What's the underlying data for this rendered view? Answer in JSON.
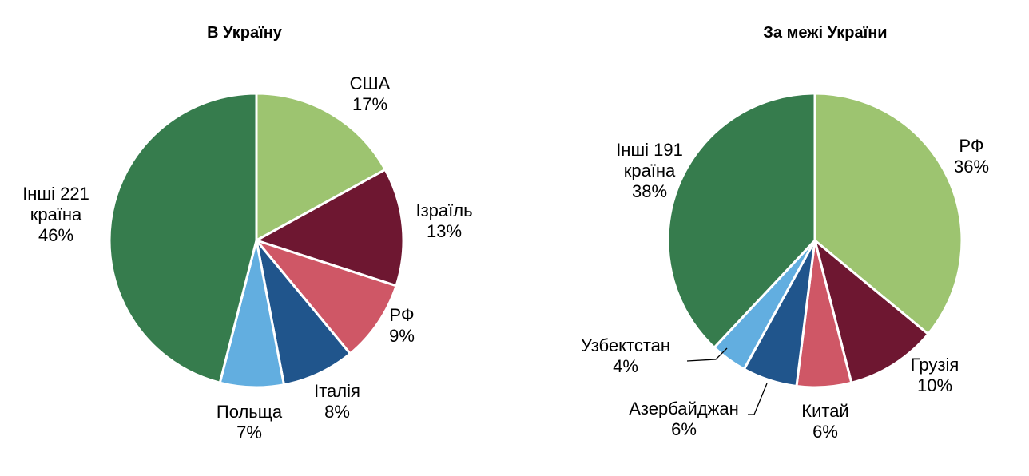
{
  "chart_data": [
    {
      "type": "pie",
      "title": "В Україну",
      "slices": [
        {
          "name": "США",
          "value": 17,
          "label": "17%",
          "color": "#9dc470"
        },
        {
          "name": "Ізраїль",
          "value": 13,
          "label": "13%",
          "color": "#6e1731"
        },
        {
          "name": "РФ",
          "value": 9,
          "label": "9%",
          "color": "#cf5766"
        },
        {
          "name": "Італія",
          "value": 8,
          "label": "8%",
          "color": "#20558c"
        },
        {
          "name": "Польща",
          "value": 7,
          "label": "7%",
          "color": "#62aee0"
        },
        {
          "name": "Інші 221 країна",
          "value": 46,
          "label": "46%",
          "color": "#367c4d"
        }
      ]
    },
    {
      "type": "pie",
      "title": "За межі України",
      "slices": [
        {
          "name": "РФ",
          "value": 36,
          "label": "36%",
          "color": "#9dc470"
        },
        {
          "name": "Грузія",
          "value": 10,
          "label": "10%",
          "color": "#6e1731"
        },
        {
          "name": "Китай",
          "value": 6,
          "label": "6%",
          "color": "#cf5766"
        },
        {
          "name": "Азербайджан",
          "value": 6,
          "label": "6%",
          "color": "#20558c"
        },
        {
          "name": "Узбектстан",
          "value": 4,
          "label": "4%",
          "color": "#62aee0"
        },
        {
          "name": "Інші 191 країна",
          "value": 38,
          "label": "38%",
          "color": "#367c4d"
        }
      ]
    }
  ]
}
